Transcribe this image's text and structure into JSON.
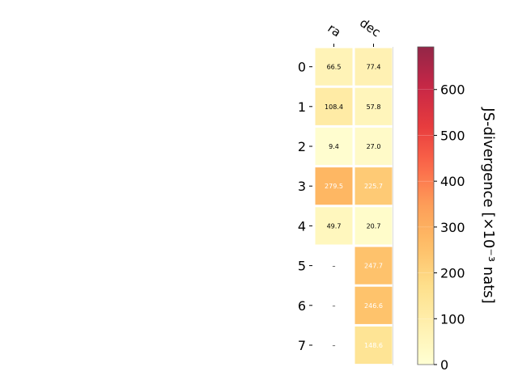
{
  "chart_data": {
    "type": "heatmap",
    "columns": [
      "ra",
      "dec"
    ],
    "rows": [
      "0",
      "1",
      "2",
      "3",
      "4",
      "5",
      "6",
      "7"
    ],
    "values": [
      [
        66.5,
        77.4
      ],
      [
        108.4,
        57.8
      ],
      [
        9.4,
        27.0
      ],
      [
        279.5,
        225.7
      ],
      [
        49.7,
        20.7
      ],
      [
        null,
        247.7
      ],
      [
        null,
        246.6
      ],
      [
        null,
        148.6
      ]
    ],
    "cell_labels": [
      [
        "66.5",
        "77.4"
      ],
      [
        "108.4",
        "57.8"
      ],
      [
        "9.4",
        "27.0"
      ],
      [
        "279.5",
        "225.7"
      ],
      [
        "49.7",
        "20.7"
      ],
      [
        "–",
        "247.7"
      ],
      [
        "–",
        "246.6"
      ],
      [
        "–",
        "148.6"
      ]
    ],
    "colormap": "YlOrRd",
    "colorbar": {
      "label": "JS-divergence [×10⁻³ nats]",
      "range": [
        0,
        693
      ],
      "ticks": [
        0,
        100,
        200,
        300,
        400,
        500,
        600
      ]
    },
    "colors": {
      "cell_border": "#ffffff",
      "text_dark": "#000000",
      "text_light": "#ffffff"
    }
  }
}
